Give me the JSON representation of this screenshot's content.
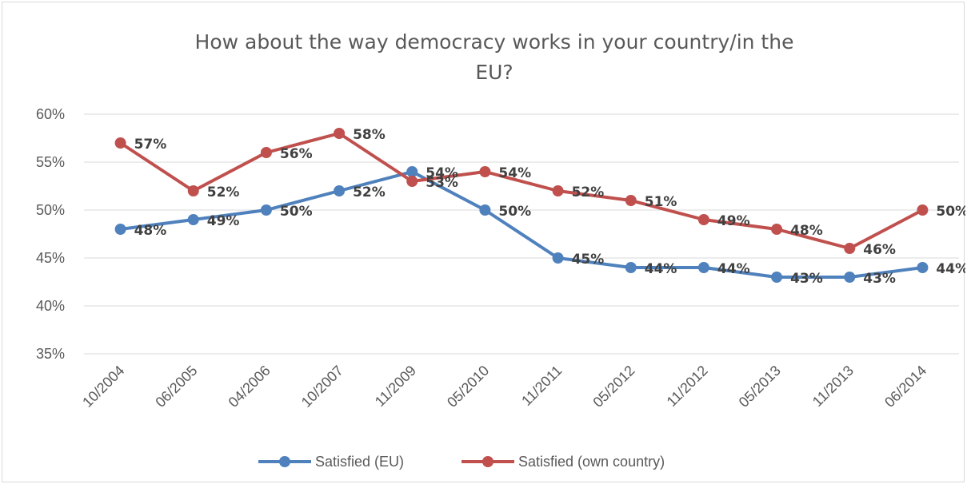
{
  "chart_data": {
    "type": "line",
    "title_line1": "How about the way democracy works in your country/in the",
    "title_line2": "EU?",
    "categories": [
      "10/2004",
      "06/2005",
      "04/2006",
      "10/2007",
      "11/2009",
      "05/2010",
      "11/2011",
      "05/2012",
      "11/2012",
      "05/2013",
      "11/2013",
      "06/2014"
    ],
    "ylim": [
      35,
      60
    ],
    "yticks": [
      35,
      40,
      45,
      50,
      55,
      60
    ],
    "ytick_labels": [
      "35%",
      "40%",
      "45%",
      "50%",
      "55%",
      "60%"
    ],
    "grid": true,
    "legend_position": "bottom",
    "series": [
      {
        "name": "Satisfied (EU)",
        "color": "#4f81bd",
        "values": [
          48,
          49,
          50,
          52,
          54,
          50,
          45,
          44,
          44,
          43,
          43,
          44
        ],
        "labels": [
          "48%",
          "49%",
          "50%",
          "52%",
          "54%",
          "50%",
          "45%",
          "44%",
          "44%",
          "43%",
          "43%",
          "44%"
        ]
      },
      {
        "name": "Satisfied (own country)",
        "color": "#c0504d",
        "values": [
          57,
          52,
          56,
          58,
          53,
          54,
          52,
          51,
          49,
          48,
          46,
          50
        ],
        "labels": [
          "57%",
          "52%",
          "56%",
          "58%",
          "53%",
          "54%",
          "52%",
          "51%",
          "49%",
          "48%",
          "46%",
          "50%"
        ]
      }
    ]
  }
}
